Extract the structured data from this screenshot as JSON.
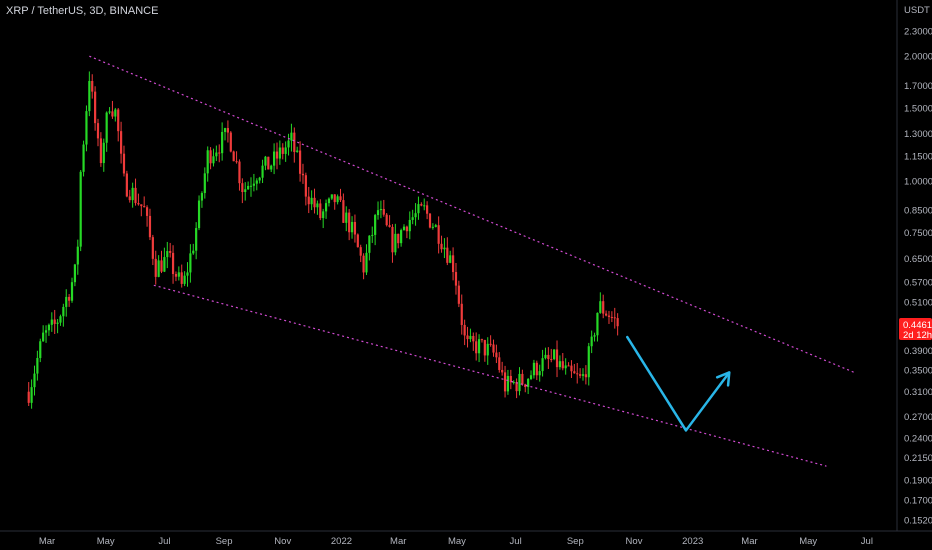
{
  "header": {
    "title": "XRP / TetherUS, 3D, BINANCE"
  },
  "price_badge": {
    "price": "0.4461",
    "countdown": "2d 12h"
  },
  "colors": {
    "up": "#26d926",
    "down": "#ef3b3b",
    "trendline": "#d24bd2",
    "arrow": "#29b6e8",
    "badge": "#ff1f1f"
  },
  "chart_data": {
    "type": "candlestick",
    "log_scale": true,
    "y_unit": "USDT",
    "yticks": [
      "2.3000",
      "2.0000",
      "1.7000",
      "1.5000",
      "1.3000",
      "1.1500",
      "1.0000",
      "0.8500",
      "0.7500",
      "0.6500",
      "0.5700",
      "0.5100",
      "0.4461",
      "0.3900",
      "0.3500",
      "0.3100",
      "0.2700",
      "0.2400",
      "0.2150",
      "0.1900",
      "0.1700",
      "0.1520"
    ],
    "xticks": [
      "Mar",
      "May",
      "Jul",
      "Sep",
      "Nov",
      "2022",
      "Mar",
      "May",
      "Jul",
      "Sep",
      "Nov",
      "2023",
      "Mar",
      "May",
      "Jul"
    ],
    "price_path": [
      [
        "2021-02-10",
        0.31
      ],
      [
        "2021-02-25",
        0.42
      ],
      [
        "2021-03-10",
        0.45
      ],
      [
        "2021-03-25",
        0.55
      ],
      [
        "2021-04-01",
        0.62
      ],
      [
        "2021-04-05",
        1.05
      ],
      [
        "2021-04-14",
        1.8
      ],
      [
        "2021-04-25",
        1.1
      ],
      [
        "2021-05-05",
        1.55
      ],
      [
        "2021-05-12",
        1.45
      ],
      [
        "2021-05-19",
        1.0
      ],
      [
        "2021-05-27",
        0.95
      ],
      [
        "2021-06-10",
        0.85
      ],
      [
        "2021-06-22",
        0.62
      ],
      [
        "2021-07-05",
        0.65
      ],
      [
        "2021-07-20",
        0.55
      ],
      [
        "2021-08-01",
        0.72
      ],
      [
        "2021-08-15",
        1.15
      ],
      [
        "2021-09-06",
        1.3
      ],
      [
        "2021-09-21",
        0.95
      ],
      [
        "2021-10-05",
        1.05
      ],
      [
        "2021-10-20",
        1.1
      ],
      [
        "2021-11-10",
        1.25
      ],
      [
        "2021-11-25",
        0.95
      ],
      [
        "2021-12-10",
        0.82
      ],
      [
        "2021-12-25",
        0.9
      ],
      [
        "2022-01-10",
        0.78
      ],
      [
        "2022-01-24",
        0.62
      ],
      [
        "2022-02-08",
        0.85
      ],
      [
        "2022-02-24",
        0.7
      ],
      [
        "2022-03-10",
        0.8
      ],
      [
        "2022-03-28",
        0.85
      ],
      [
        "2022-04-12",
        0.75
      ],
      [
        "2022-04-28",
        0.62
      ],
      [
        "2022-05-10",
        0.4
      ],
      [
        "2022-05-25",
        0.4
      ],
      [
        "2022-06-10",
        0.38
      ],
      [
        "2022-06-20",
        0.32
      ],
      [
        "2022-07-10",
        0.33
      ],
      [
        "2022-07-25",
        0.36
      ],
      [
        "2022-08-10",
        0.37
      ],
      [
        "2022-08-25",
        0.34
      ],
      [
        "2022-09-08",
        0.33
      ],
      [
        "2022-09-18",
        0.4
      ],
      [
        "2022-09-25",
        0.5
      ],
      [
        "2022-10-05",
        0.48
      ],
      [
        "2022-10-17",
        0.4461
      ]
    ],
    "annotations": {
      "upper_trendline": [
        [
          "2021-04-14",
          2.0
        ],
        [
          "2023-06-18",
          0.345
        ]
      ],
      "lower_trendline": [
        [
          "2021-06-20",
          0.56
        ],
        [
          "2023-05-20",
          0.205
        ]
      ],
      "projection_arrow": [
        [
          "2022-10-25",
          0.42
        ],
        [
          "2022-12-25",
          0.25
        ],
        [
          "2023-02-08",
          0.345
        ]
      ]
    }
  }
}
